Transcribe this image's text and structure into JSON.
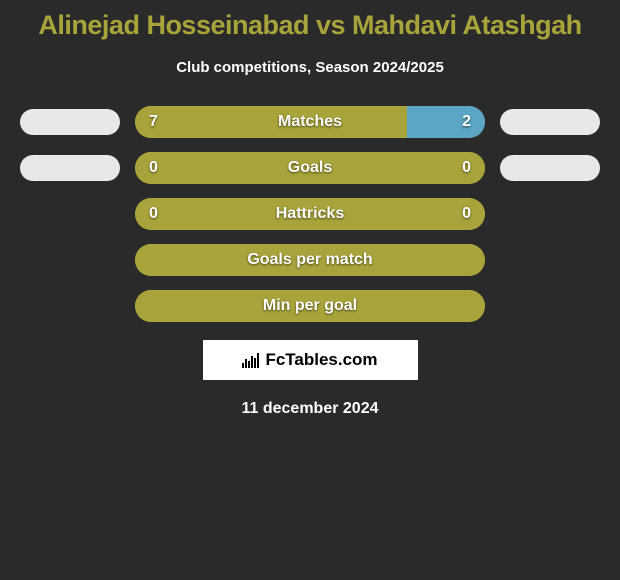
{
  "title": {
    "text": "Alinejad Hosseinabad vs Mahdavi Atashgah",
    "color": "#a8a33a",
    "fontsize": 27
  },
  "subtitle": {
    "text": "Club competitions, Season 2024/2025",
    "color": "#ffffff",
    "fontsize": 15
  },
  "colors": {
    "background": "#2a2a2a",
    "brand_border": "#ffffff",
    "brand_bg": "#ffffff",
    "brand_text": "#000000"
  },
  "outer_pill_color": "#e8e8e8",
  "bar_base_color": "#a8a33a",
  "bar_alt_color": "#5aa6c4",
  "val_color": "#ffffff",
  "label_color": "#ffffff",
  "label_fontsize": 16,
  "val_fontsize": 16,
  "rows": [
    {
      "label": "Matches",
      "left_val": "7",
      "right_val": "2",
      "left_pct": 77.8,
      "right_pct": 22.2,
      "left_color": "#a8a33a",
      "right_color": "#5aa6c4",
      "show_outer": true
    },
    {
      "label": "Goals",
      "left_val": "0",
      "right_val": "0",
      "left_pct": 100,
      "right_pct": 0,
      "left_color": "#a8a33a",
      "right_color": "#5aa6c4",
      "show_outer": true
    },
    {
      "label": "Hattricks",
      "left_val": "0",
      "right_val": "0",
      "left_pct": 100,
      "right_pct": 0,
      "left_color": "#a8a33a",
      "right_color": "#5aa6c4",
      "show_outer": false
    },
    {
      "label": "Goals per match",
      "left_val": "",
      "right_val": "",
      "left_pct": 100,
      "right_pct": 0,
      "left_color": "#a8a33a",
      "right_color": "#5aa6c4",
      "show_outer": false
    },
    {
      "label": "Min per goal",
      "left_val": "",
      "right_val": "",
      "left_pct": 100,
      "right_pct": 0,
      "left_color": "#a8a33a",
      "right_color": "#5aa6c4",
      "show_outer": false
    }
  ],
  "brand": {
    "text": "FcTables.com",
    "fontsize": 17
  },
  "date": {
    "text": "11 december 2024",
    "color": "#ffffff",
    "fontsize": 16
  }
}
